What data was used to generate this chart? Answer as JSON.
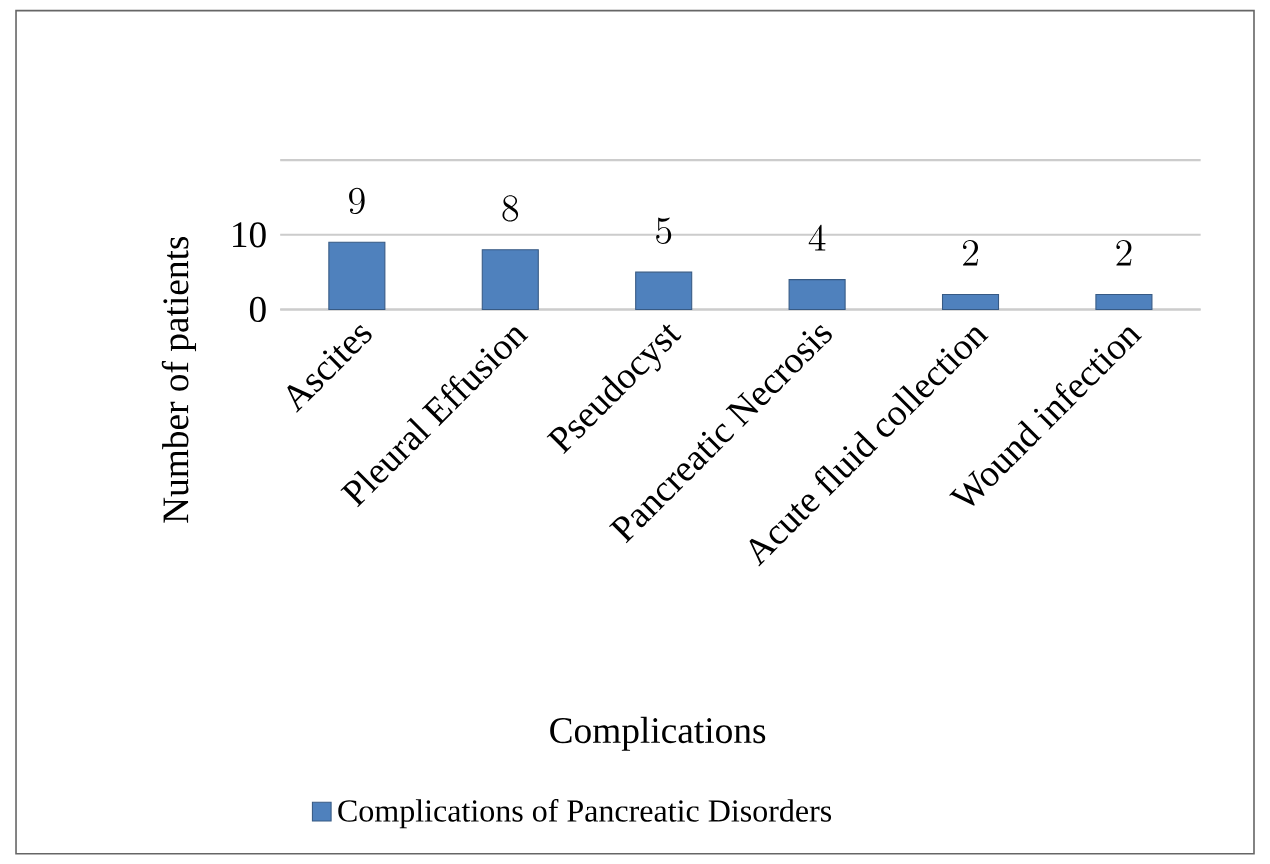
{
  "chart_data": {
    "type": "bar",
    "categories": [
      "Ascites",
      "Pleural Effusion",
      "Pseudocyst",
      "Pancreatic Necrosis",
      "Acute fluid collection",
      "Wound infection"
    ],
    "series": [
      {
        "name": "Complications of Pancreatic Disorders",
        "color": "#4f81bd",
        "values": [
          9,
          8,
          5,
          4,
          2,
          2
        ]
      }
    ],
    "xlabel": "Complications",
    "ylabel": "Number of patients",
    "ylim": [
      0,
      20
    ],
    "yticks": [
      0,
      10,
      {
        "value": 20,
        "label": null
      }
    ],
    "grid": "y",
    "legend": "bottom",
    "data_labels": true
  }
}
